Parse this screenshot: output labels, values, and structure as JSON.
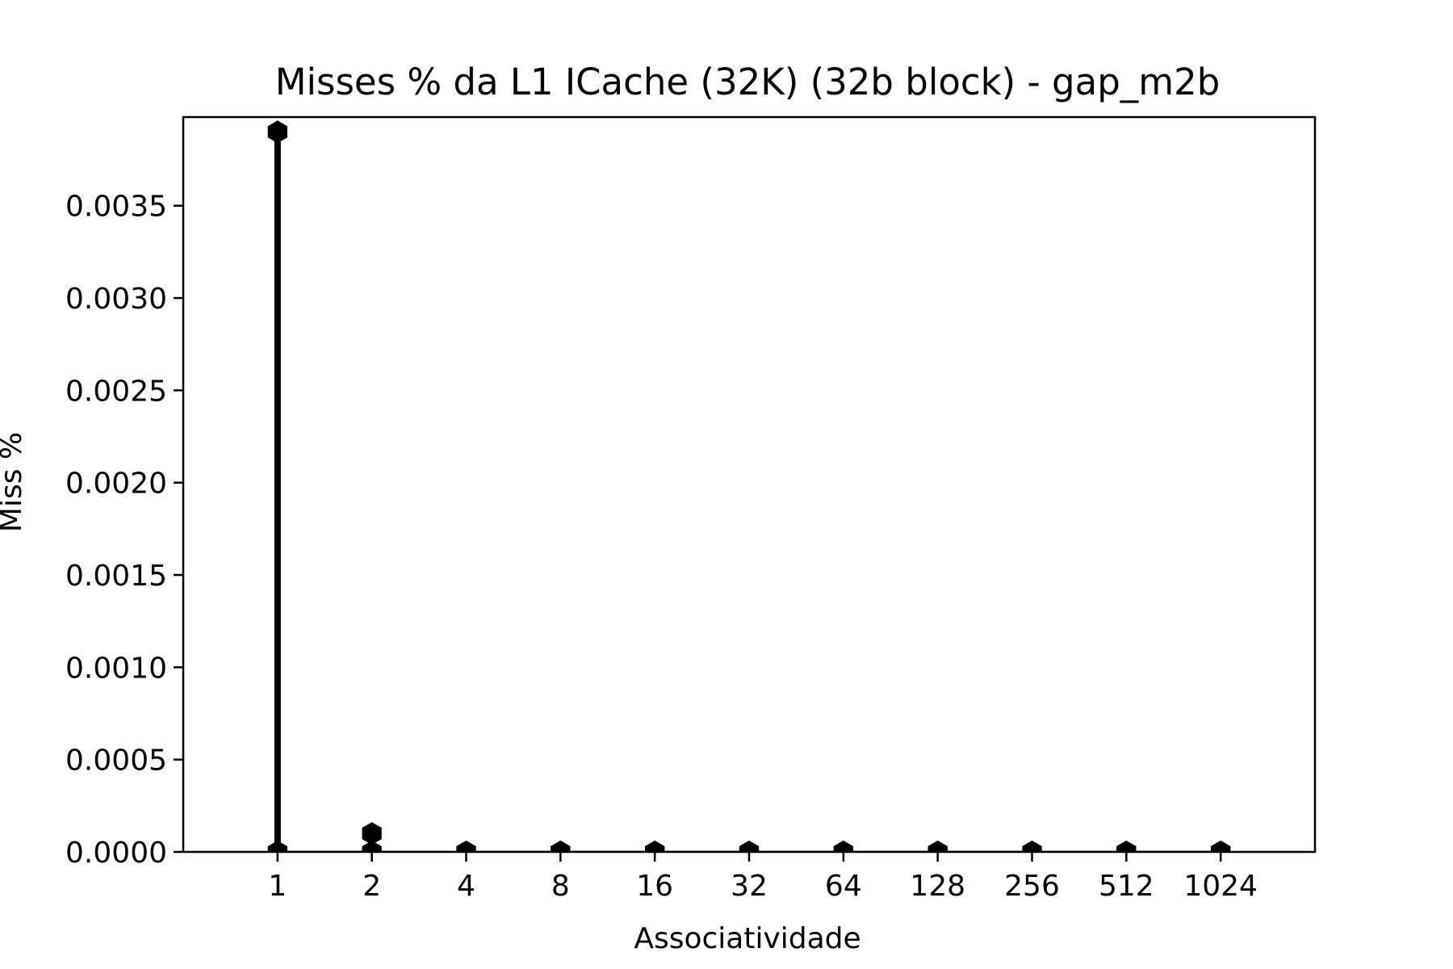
{
  "chart_data": {
    "type": "stem",
    "title": "Misses % da L1 ICache (32K) (32b block) - gap_m2b",
    "xlabel": "Associatividade",
    "ylabel": "Miss %",
    "categories": [
      "1",
      "2",
      "4",
      "8",
      "16",
      "32",
      "64",
      "128",
      "256",
      "512",
      "1024"
    ],
    "series": [
      {
        "values": [
          0.0039,
          0.0001,
          0.0,
          0.0,
          0.0,
          0.0,
          0.0,
          0.0,
          0.0,
          0.0,
          0.0
        ]
      }
    ],
    "ylim": [
      0.0,
      0.00398
    ],
    "yticks": [
      "0.0000",
      "0.0005",
      "0.0010",
      "0.0015",
      "0.0020",
      "0.0025",
      "0.0030",
      "0.0035"
    ],
    "grid": false,
    "legend": "none",
    "colors": {
      "stem": "#000000",
      "marker": "#000000",
      "baseline": "#d62728",
      "axes": "#000000"
    }
  }
}
